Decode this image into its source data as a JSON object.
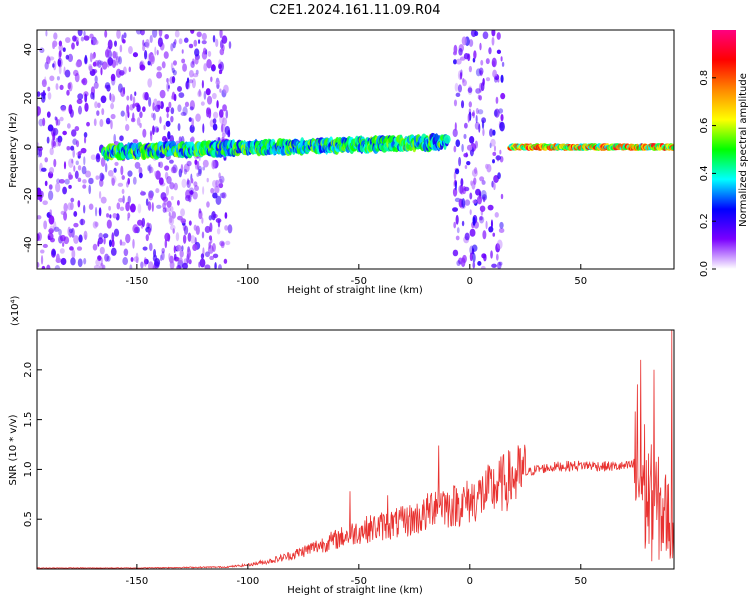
{
  "figure": {
    "title": "C2E1.2024.161.11.09.R04"
  },
  "chart_data": [
    {
      "type": "heatmap",
      "title": "C2E1.2024.161.11.09.R04",
      "xlabel": "Height of straight line (km)",
      "ylabel": "Frequency (Hz)",
      "xlim": [
        -195,
        92
      ],
      "ylim": [
        -50,
        48
      ],
      "x_ticks": [
        -150,
        -100,
        -50,
        0,
        50
      ],
      "x_tick_labels": [
        "-150",
        "-100",
        "-50",
        "0",
        "50"
      ],
      "y_ticks": [
        -40,
        -20,
        0,
        20,
        40
      ],
      "y_tick_labels": [
        "-40",
        "-20",
        "0",
        "20",
        "40"
      ],
      "colorbar": {
        "label": "Normalized spectral amplitude",
        "range": [
          0,
          1
        ],
        "ticks": [
          0.0,
          0.2,
          0.4,
          0.6,
          0.8
        ],
        "tick_labels": [
          "0.0",
          "0.2",
          "0.4",
          "0.6",
          "0.8"
        ],
        "colormap": [
          "#ffffff",
          "#7a00ff",
          "#0000ff",
          "#00ffff",
          "#00ff00",
          "#ffff00",
          "#ff8800",
          "#ff0000",
          "#ff0080"
        ]
      },
      "regions": [
        {
          "name": "noise",
          "x_range": [
            -195,
            -108
          ],
          "freq_range": [
            -50,
            48
          ],
          "amplitude": 0.18
        },
        {
          "name": "ridge-broad",
          "x_range": [
            -165,
            -10
          ],
          "freq_center_start": -2,
          "freq_center_end": 2,
          "amplitude": 0.45
        },
        {
          "name": "noise",
          "x_range": [
            -7,
            15
          ],
          "freq_range": [
            -50,
            48
          ],
          "amplitude": 0.2
        },
        {
          "name": "ridge-narrow",
          "x_range": [
            18,
            92
          ],
          "freq_center": 0,
          "amplitude": 0.7
        }
      ],
      "grid": false
    },
    {
      "type": "line",
      "xlabel": "Height of straight line (km)",
      "ylabel": "SNR (10 * v/v)",
      "y_multiplier": "(x10⁴)",
      "xlim": [
        -195,
        92
      ],
      "ylim": [
        0,
        24000
      ],
      "x_ticks": [
        -150,
        -100,
        -50,
        0,
        50
      ],
      "x_tick_labels": [
        "-150",
        "-100",
        "-50",
        "0",
        "50"
      ],
      "y_ticks": [
        5000,
        10000,
        15000,
        20000
      ],
      "y_tick_labels": [
        "0.5",
        "1.0",
        "1.5",
        "2.0"
      ],
      "color": "#e8312f",
      "envelope": {
        "x": [
          -195,
          -150,
          -110,
          -100,
          -90,
          -80,
          -70,
          -60,
          -50,
          -40,
          -30,
          -20,
          -14,
          -10,
          0,
          10,
          20,
          30,
          40,
          50,
          55,
          60,
          70,
          75,
          78,
          80,
          85,
          90,
          92
        ],
        "y": [
          100,
          100,
          200,
          400,
          800,
          1400,
          2200,
          3000,
          3800,
          4300,
          4700,
          5400,
          7200,
          6200,
          6800,
          8000,
          9200,
          10000,
          10300,
          10400,
          10400,
          10300,
          10300,
          10500,
          9000,
          7000,
          6000,
          5000,
          4000
        ]
      },
      "spikes": [
        {
          "x": -54,
          "y": 7800
        },
        {
          "x": -37,
          "y": 7400
        },
        {
          "x": -14,
          "y": 12400
        },
        {
          "x": 77,
          "y": 21000
        },
        {
          "x": 83,
          "y": 20000
        },
        {
          "x": 91,
          "y": 24000
        }
      ],
      "grid": false
    }
  ]
}
